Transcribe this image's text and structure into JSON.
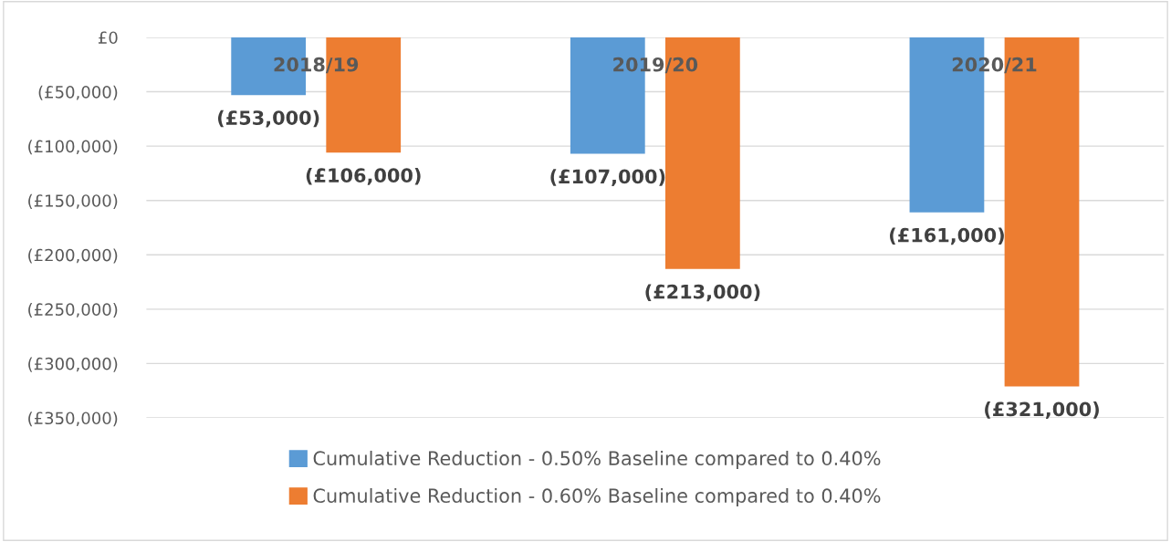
{
  "chart_data": {
    "type": "bar",
    "categories": [
      "2018/19",
      "2019/20",
      "2020/21"
    ],
    "series": [
      {
        "name": "Cumulative Reduction - 0.50% Baseline compared to 0.40%",
        "color": "#5b9bd5",
        "values": [
          -53000,
          -107000,
          -161000
        ],
        "value_labels": [
          "(£53,000)",
          "(£107,000)",
          "(£161,000)"
        ]
      },
      {
        "name": "Cumulative Reduction - 0.60% Baseline compared to 0.40%",
        "color": "#ed7d31",
        "values": [
          -106000,
          -213000,
          -321000
        ],
        "value_labels": [
          "(£106,000)",
          "(£213,000)",
          "(£321,000)"
        ]
      }
    ],
    "ylim": [
      -350000,
      0
    ],
    "yticks": [
      {
        "value": 0,
        "label": "£0"
      },
      {
        "value": -50000,
        "label": "(£50,000)"
      },
      {
        "value": -100000,
        "label": "(£100,000)"
      },
      {
        "value": -150000,
        "label": "(£150,000)"
      },
      {
        "value": -200000,
        "label": "(£200,000)"
      },
      {
        "value": -250000,
        "label": "(£250,000)"
      },
      {
        "value": -300000,
        "label": "(£300,000)"
      },
      {
        "value": -350000,
        "label": "(£350,000)"
      }
    ],
    "grid": "y",
    "legend": "bottom"
  }
}
